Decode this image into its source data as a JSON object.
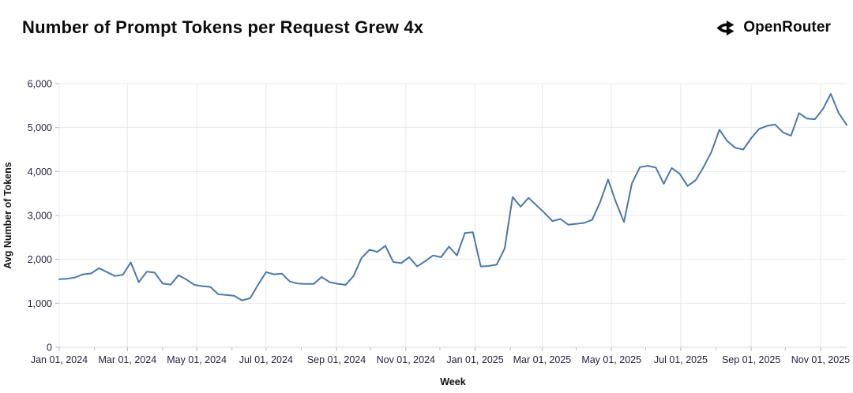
{
  "header": {
    "title": "Number of Prompt Tokens per Request Grew 4x",
    "brand": "OpenRouter"
  },
  "chart_data": {
    "type": "line",
    "title": "Number of Prompt Tokens per Request Grew 4x",
    "xlabel": "Week",
    "ylabel": "Avg Number of Tokens",
    "ylim": [
      0,
      6000
    ],
    "grid": true,
    "legend": "none",
    "line_color": "#4c78a8",
    "grid_color": "#e8e8f0",
    "axis_line_color": "#d9d9e3",
    "tick_color": "#b5b5c4",
    "label_color": "#23233c",
    "y_tick_values": [
      0,
      1000,
      2000,
      3000,
      4000,
      5000,
      6000
    ],
    "y_tick_labels": [
      "0",
      "1,000",
      "2,000",
      "3,000",
      "4,000",
      "5,000",
      "6,000"
    ],
    "x_tick_labels": [
      "Jan 01, 2024",
      "Mar 01, 2024",
      "May 01, 2024",
      "Jul 01, 2024",
      "Sep 01, 2024",
      "Nov 01, 2024",
      "Jan 01, 2025",
      "Mar 01, 2025",
      "May 01, 2025",
      "Jul 01, 2025",
      "Sep 01, 2025",
      "Nov 01, 2025"
    ],
    "x_tick_days": [
      0,
      60,
      121,
      182,
      244,
      305,
      366,
      425,
      486,
      547,
      609,
      670
    ],
    "x_minor_tick_days": [
      31,
      91,
      152,
      213,
      274,
      335,
      397,
      455,
      516,
      578,
      639
    ],
    "week_start": "2024-01-01",
    "interval_days": 7,
    "values": [
      1550,
      1560,
      1590,
      1660,
      1680,
      1800,
      1710,
      1620,
      1650,
      1930,
      1480,
      1720,
      1700,
      1450,
      1425,
      1640,
      1540,
      1420,
      1390,
      1375,
      1205,
      1190,
      1170,
      1065,
      1115,
      1425,
      1710,
      1660,
      1675,
      1495,
      1450,
      1440,
      1440,
      1600,
      1480,
      1445,
      1420,
      1620,
      2030,
      2220,
      2170,
      2310,
      1940,
      1915,
      2050,
      1840,
      1960,
      2090,
      2050,
      2290,
      2090,
      2600,
      2620,
      1840,
      1850,
      1880,
      2250,
      3420,
      3200,
      3400,
      3230,
      3060,
      2870,
      2920,
      2790,
      2810,
      2830,
      2900,
      3300,
      3820,
      3300,
      2850,
      3730,
      4100,
      4130,
      4090,
      3720,
      4080,
      3950,
      3670,
      3800,
      4100,
      4450,
      4950,
      4690,
      4540,
      4500,
      4760,
      4970,
      5040,
      5070,
      4890,
      4815,
      5330,
      5205,
      5190,
      5420,
      5765,
      5330,
      5060
    ]
  }
}
